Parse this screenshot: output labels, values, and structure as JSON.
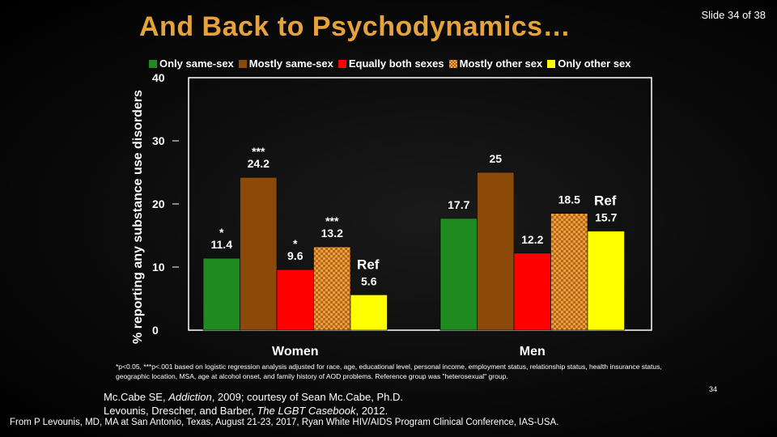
{
  "slide": {
    "title": "And Back to Psychodynamics…",
    "slide_number": "Slide 34 of 38",
    "page_number": "34"
  },
  "chart_data": {
    "type": "bar",
    "ylabel": "% reporting any substance use disorders",
    "ylim": [
      0,
      40
    ],
    "yticks": [
      "0",
      "10",
      "20",
      "30",
      "40"
    ],
    "categories": [
      "Women",
      "Men"
    ],
    "series": [
      {
        "name": "Only same-sex",
        "color": "#1f8a1f",
        "values": [
          11.4,
          17.7
        ],
        "labels": [
          "11.4",
          "17.7"
        ],
        "sig": [
          "*",
          ""
        ]
      },
      {
        "name": "Mostly same-sex",
        "color": "#8b4a0a",
        "values": [
          24.2,
          25
        ],
        "labels": [
          "24.2",
          "25"
        ],
        "sig": [
          "***",
          ""
        ]
      },
      {
        "name": "Equally both sexes",
        "color": "#ff0000",
        "values": [
          9.6,
          12.2
        ],
        "labels": [
          "9.6",
          "12.2"
        ],
        "sig": [
          "*",
          ""
        ]
      },
      {
        "name": "Mostly other sex",
        "color": "#e8a040",
        "pattern": "checker",
        "values": [
          13.2,
          18.5
        ],
        "labels": [
          "13.2",
          "18.5"
        ],
        "sig": [
          "***",
          ""
        ]
      },
      {
        "name": "Only other sex",
        "color": "#ffff00",
        "values": [
          5.6,
          15.7
        ],
        "labels": [
          "5.6",
          "15.7"
        ],
        "sig": [
          "",
          ""
        ]
      }
    ],
    "ref_label": "Ref",
    "legend_position": "top"
  },
  "footnote": "*p<0.05, ***p<.001 based on logistic regression analysis adjusted for race, age, educational level, personal income, employment status, relationship status, health insurance status, geographic location, MSA, age at alcohol onset, and family history of AOD problems.  Reference group was \"heterosexual\" group.",
  "citation": {
    "line1_prefix": "Mc.Cabe SE, ",
    "line1_journal": "Addiction",
    "line1_suffix": ", 2009; courtesy of Sean Mc.Cabe, Ph.D.",
    "line2_prefix": "Levounis, Drescher, and Barber, ",
    "line2_book": "The LGBT Casebook",
    "line2_suffix": ", 2012."
  },
  "source": "From P Levounis, MD, MA at San Antonio, Texas, August 21-23, 2017, Ryan White HIV/AIDS Program Clinical Conference, IAS-USA."
}
